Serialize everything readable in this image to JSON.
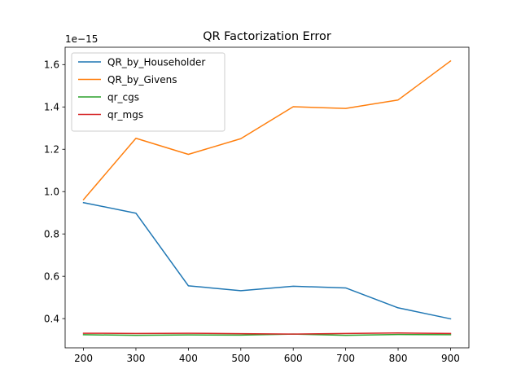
{
  "chart_data": {
    "type": "line",
    "title": "QR Factorization Error",
    "xlabel": "",
    "ylabel": "",
    "y_offset_label": "1e−15",
    "x": [
      200,
      300,
      400,
      500,
      600,
      700,
      800,
      900
    ],
    "xlim": [
      165,
      935
    ],
    "ylim": [
      0.262,
      1.682
    ],
    "x_ticks": [
      200,
      300,
      400,
      500,
      600,
      700,
      800,
      900
    ],
    "y_ticks": [
      0.4,
      0.6,
      0.8,
      1.0,
      1.2,
      1.4,
      1.6
    ],
    "y_tick_labels": [
      "0.4",
      "0.6",
      "0.8",
      "1.0",
      "1.2",
      "1.4",
      "1.6"
    ],
    "grid": false,
    "legend_position": "upper-left",
    "series": [
      {
        "name": "QR_by_Householder",
        "color": "#1f77b4",
        "values": [
          0.948,
          0.898,
          0.555,
          0.532,
          0.553,
          0.545,
          0.451,
          0.399
        ]
      },
      {
        "name": "QR_by_Givens",
        "color": "#ff7f0e",
        "values": [
          0.962,
          1.252,
          1.176,
          1.25,
          1.401,
          1.393,
          1.433,
          1.617
        ]
      },
      {
        "name": "qr_cgs",
        "color": "#2ca02c",
        "values": [
          0.324,
          0.321,
          0.323,
          0.322,
          0.327,
          0.321,
          0.325,
          0.324
        ]
      },
      {
        "name": "qr_mgs",
        "color": "#d62728",
        "values": [
          0.331,
          0.33,
          0.331,
          0.329,
          0.327,
          0.33,
          0.332,
          0.33
        ]
      }
    ]
  }
}
